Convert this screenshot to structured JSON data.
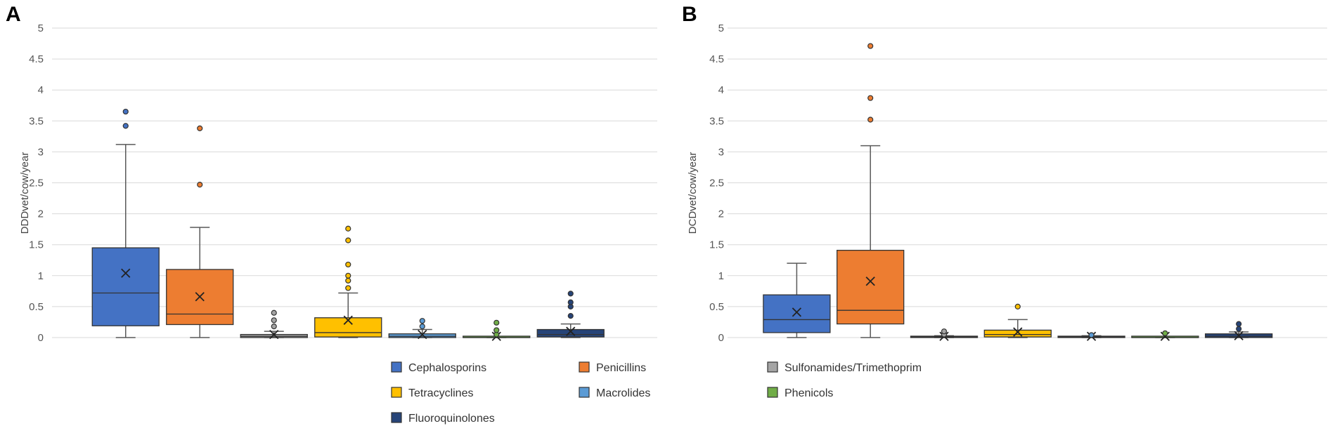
{
  "figure": {
    "panels": [
      "A",
      "B"
    ]
  },
  "legend": {
    "entries": [
      {
        "name": "Cephalosporins",
        "color": "#4472c4"
      },
      {
        "name": "Penicillins",
        "color": "#ed7d31"
      },
      {
        "name": "Sulfonamides/Trimethoprim",
        "color": "#a5a5a5"
      },
      {
        "name": "Tetracyclines",
        "color": "#ffc000"
      },
      {
        "name": "Macrolides",
        "color": "#5b9bd5"
      },
      {
        "name": "Phenicols",
        "color": "#70ad47"
      },
      {
        "name": "Fluoroquinolones",
        "color": "#264478"
      }
    ]
  },
  "chart_data": [
    {
      "type": "box",
      "panel": "A",
      "ylabel": "DDDvet/cow/year",
      "ylim": [
        0,
        5
      ],
      "yticks": [
        "0",
        "0.5",
        "1",
        "1.5",
        "2",
        "2.5",
        "3",
        "3.5",
        "4",
        "4.5",
        "5"
      ],
      "series": [
        {
          "name": "Cephalosporins",
          "color": "#4472c4",
          "min": 0,
          "q1": 0.19,
          "median": 0.72,
          "q3": 1.45,
          "max": 3.12,
          "mean": 1.04,
          "outliers": [
            3.42,
            3.65
          ]
        },
        {
          "name": "Penicillins",
          "color": "#ed7d31",
          "min": 0,
          "q1": 0.21,
          "median": 0.38,
          "q3": 1.1,
          "max": 1.78,
          "mean": 0.66,
          "outliers": [
            2.47,
            3.38
          ]
        },
        {
          "name": "Sulfonamides/Trimethoprim",
          "color": "#a5a5a5",
          "min": 0,
          "q1": 0.0,
          "median": 0.02,
          "q3": 0.05,
          "max": 0.1,
          "mean": 0.05,
          "outliers": [
            0.18,
            0.28,
            0.4
          ]
        },
        {
          "name": "Tetracyclines",
          "color": "#ffc000",
          "min": 0,
          "q1": 0.01,
          "median": 0.08,
          "q3": 0.32,
          "max": 0.72,
          "mean": 0.28,
          "outliers": [
            0.8,
            0.92,
            1.0,
            1.18,
            1.57,
            1.76
          ]
        },
        {
          "name": "Macrolides",
          "color": "#5b9bd5",
          "min": 0,
          "q1": 0.0,
          "median": 0.02,
          "q3": 0.06,
          "max": 0.13,
          "mean": 0.05,
          "outliers": [
            0.18,
            0.27
          ]
        },
        {
          "name": "Phenicols",
          "color": "#70ad47",
          "min": 0,
          "q1": 0.0,
          "median": 0.0,
          "q3": 0.01,
          "max": 0.02,
          "mean": 0.02,
          "outliers": [
            0.05,
            0.12,
            0.24
          ]
        },
        {
          "name": "Fluoroquinolones",
          "color": "#264478",
          "min": 0,
          "q1": 0.01,
          "median": 0.05,
          "q3": 0.13,
          "max": 0.22,
          "mean": 0.1,
          "outliers": [
            0.35,
            0.5,
            0.57,
            0.71
          ]
        }
      ]
    },
    {
      "type": "box",
      "panel": "B",
      "ylabel": "DCDvet/cow/year",
      "ylim": [
        0,
        5
      ],
      "yticks": [
        "0",
        "0.5",
        "1",
        "1.5",
        "2",
        "2.5",
        "3",
        "3.5",
        "4",
        "4.5",
        "5"
      ],
      "series": [
        {
          "name": "Cephalosporins",
          "color": "#4472c4",
          "min": 0,
          "q1": 0.08,
          "median": 0.29,
          "q3": 0.69,
          "max": 1.2,
          "mean": 0.41,
          "outliers": []
        },
        {
          "name": "Penicillins",
          "color": "#ed7d31",
          "min": 0,
          "q1": 0.22,
          "median": 0.44,
          "q3": 1.41,
          "max": 3.1,
          "mean": 0.91,
          "outliers": [
            3.52,
            3.87,
            4.71
          ]
        },
        {
          "name": "Sulfonamides/Trimethoprim",
          "color": "#a5a5a5",
          "min": 0,
          "q1": 0.0,
          "median": 0.01,
          "q3": 0.02,
          "max": 0.03,
          "mean": 0.02,
          "outliers": [
            0.05,
            0.1
          ]
        },
        {
          "name": "Tetracyclines",
          "color": "#ffc000",
          "min": 0,
          "q1": 0.01,
          "median": 0.05,
          "q3": 0.12,
          "max": 0.29,
          "mean": 0.09,
          "outliers": [
            0.5
          ]
        },
        {
          "name": "Macrolides",
          "color": "#5b9bd5",
          "min": 0,
          "q1": 0.0,
          "median": 0.01,
          "q3": 0.02,
          "max": 0.03,
          "mean": 0.02,
          "outliers": [
            0.04
          ]
        },
        {
          "name": "Phenicols",
          "color": "#70ad47",
          "min": 0,
          "q1": 0.0,
          "median": 0.0,
          "q3": 0.01,
          "max": 0.02,
          "mean": 0.02,
          "outliers": [
            0.07
          ]
        },
        {
          "name": "Fluoroquinolones",
          "color": "#264478",
          "min": 0,
          "q1": 0.0,
          "median": 0.02,
          "q3": 0.06,
          "max": 0.09,
          "mean": 0.03,
          "outliers": [
            0.14,
            0.22
          ]
        }
      ]
    }
  ]
}
